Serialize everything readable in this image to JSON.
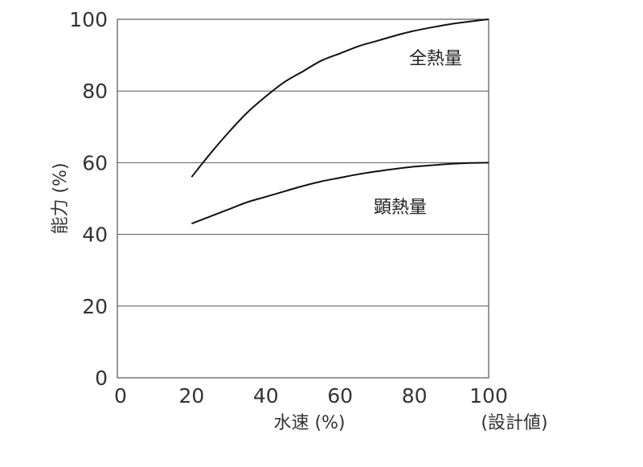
{
  "chart_data": {
    "type": "line",
    "title": "",
    "xlabel": "水速 (%)",
    "xlabel_note": "(設計値)",
    "ylabel": "能力 (%)",
    "xlim": [
      0,
      100
    ],
    "ylim": [
      0,
      100
    ],
    "xticks": [
      0,
      20,
      40,
      60,
      80,
      100
    ],
    "yticks": [
      0,
      20,
      40,
      60,
      80,
      100
    ],
    "grid": "horizontal",
    "series": [
      {
        "name": "全熱量",
        "x": [
          20,
          25,
          30,
          35,
          40,
          45,
          50,
          55,
          60,
          65,
          70,
          75,
          80,
          85,
          90,
          95,
          100
        ],
        "y": [
          56,
          62.5,
          68.5,
          74,
          78.5,
          82.5,
          85.5,
          88.5,
          90.5,
          92.5,
          94,
          95.5,
          96.8,
          97.8,
          98.7,
          99.4,
          100
        ]
      },
      {
        "name": "顕熱量",
        "x": [
          20,
          25,
          30,
          35,
          40,
          45,
          50,
          55,
          60,
          65,
          70,
          75,
          80,
          85,
          90,
          95,
          100
        ],
        "y": [
          43,
          45,
          47,
          49,
          50.5,
          52,
          53.5,
          54.8,
          55.8,
          56.8,
          57.6,
          58.3,
          58.9,
          59.3,
          59.7,
          59.9,
          60
        ]
      }
    ]
  }
}
